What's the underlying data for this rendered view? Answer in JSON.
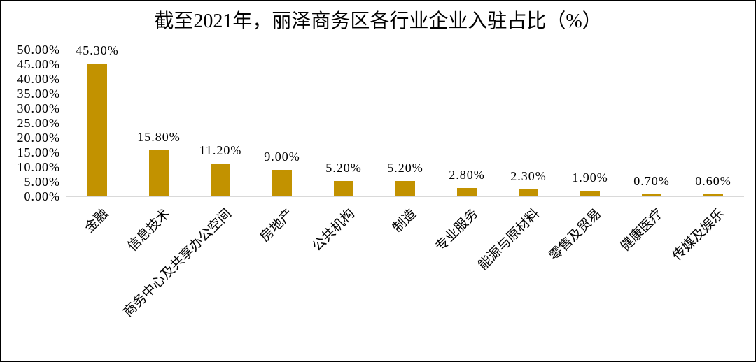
{
  "chart_data": {
    "type": "bar",
    "title": "截至2021年，丽泽商务区各行业企业入驻占比（%）",
    "xlabel": "",
    "ylabel": "",
    "ylim": [
      0,
      50
    ],
    "grid": false,
    "legend": "none",
    "bar_color": "#C29200",
    "axis_line_color": "#D9D9D9",
    "text_color": "#000000",
    "categories": [
      "金融",
      "信息技术",
      "商务中心及共享办公空间",
      "房地产",
      "公共机构",
      "制造",
      "专业服务",
      "能源与原材料",
      "零售及贸易",
      "健康医疗",
      "传媒及娱乐"
    ],
    "values": [
      45.3,
      15.8,
      11.2,
      9.0,
      5.2,
      5.2,
      2.8,
      2.3,
      1.9,
      0.7,
      0.6
    ],
    "value_labels": [
      "45.30%",
      "15.80%",
      "11.20%",
      "9.00%",
      "5.20%",
      "5.20%",
      "2.80%",
      "2.30%",
      "1.90%",
      "0.70%",
      "0.60%"
    ],
    "yticks": [
      {
        "value": 50,
        "label": "50.00%"
      },
      {
        "value": 45,
        "label": "45.00%"
      },
      {
        "value": 40,
        "label": "40.00%"
      },
      {
        "value": 35,
        "label": "35.00%"
      },
      {
        "value": 30,
        "label": "30.00%"
      },
      {
        "value": 25,
        "label": "25.00%"
      },
      {
        "value": 20,
        "label": "20.00%"
      },
      {
        "value": 15,
        "label": "15.00%"
      },
      {
        "value": 10,
        "label": "10.00%"
      },
      {
        "value": 5,
        "label": "5.00%"
      },
      {
        "value": 0,
        "label": "0.00%"
      }
    ]
  }
}
